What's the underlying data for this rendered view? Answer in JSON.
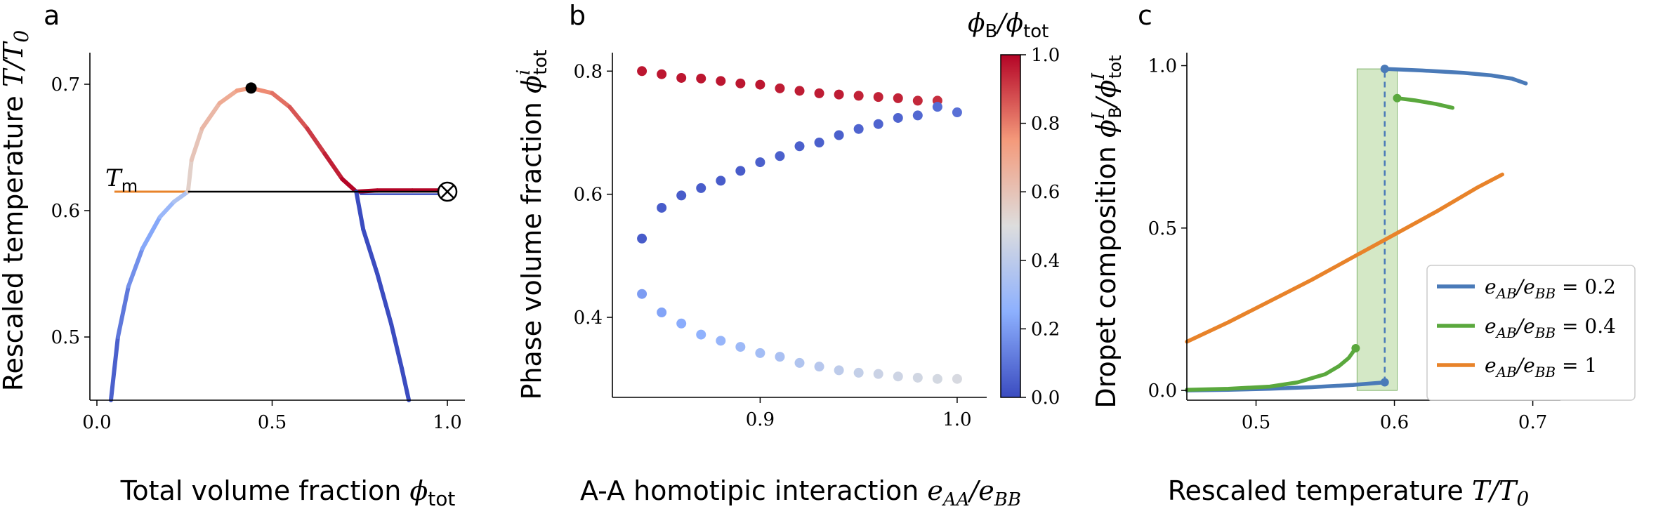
{
  "figure": {
    "panel_labels": [
      "a",
      "b",
      "c"
    ]
  },
  "colors": {
    "blue": "#3b4cc0",
    "red": "#b40426",
    "orange": "#e8832a",
    "c_blue": "#4a7ab8",
    "c_green": "#5aa83d",
    "c_orange": "#e8832a",
    "shade": "#a9d18e"
  },
  "chart_data": [
    {
      "type": "line",
      "panel": "a",
      "xlabel": "Total volume fraction",
      "xlabel_math": "ϕ",
      "xlabel_sub": "tot",
      "ylabel": "Rescaled temperature",
      "ylabel_math": "T/T",
      "ylabel_sub": "0",
      "xlim": [
        -0.02,
        1.05
      ],
      "ylim": [
        0.45,
        0.725
      ],
      "xticks": [
        0.0,
        0.5,
        1.0
      ],
      "xtick_labels": [
        "0.0",
        "0.5",
        "1.0"
      ],
      "yticks": [
        0.5,
        0.6,
        0.7
      ],
      "ytick_labels": [
        "0.5",
        "0.6",
        "0.7"
      ],
      "annotation_label": "T",
      "annotation_sub": "m",
      "critical_point": [
        0.44,
        0.697
      ],
      "triple_line": {
        "x": [
          0.26,
          1.0
        ],
        "y": 0.615
      },
      "tm_line": {
        "x": [
          0.05,
          0.26
        ],
        "y": 0.615
      },
      "endpoint_marker": [
        1.0,
        0.615
      ],
      "series": [
        {
          "label": "left_binodal",
          "x": [
            0.04,
            0.06,
            0.09,
            0.13,
            0.18,
            0.22,
            0.26
          ],
          "y": [
            0.45,
            0.5,
            0.54,
            0.57,
            0.595,
            0.607,
            0.615
          ]
        },
        {
          "label": "upper_dome",
          "x": [
            0.26,
            0.27,
            0.3,
            0.35,
            0.4,
            0.44,
            0.5,
            0.55,
            0.6,
            0.65,
            0.7,
            0.74
          ],
          "y": [
            0.615,
            0.64,
            0.665,
            0.685,
            0.695,
            0.697,
            0.693,
            0.682,
            0.665,
            0.645,
            0.625,
            0.615
          ]
        },
        {
          "label": "right_plateau",
          "x": [
            0.74,
            0.8,
            0.9,
            1.0
          ],
          "y": [
            0.615,
            0.616,
            0.616,
            0.616
          ]
        },
        {
          "label": "right_binodal",
          "x": [
            0.74,
            0.76,
            0.8,
            0.84,
            0.87,
            0.89
          ],
          "y": [
            0.615,
            0.585,
            0.55,
            0.51,
            0.475,
            0.45
          ]
        }
      ]
    },
    {
      "type": "scatter",
      "panel": "b",
      "xlabel": "A-A homotipic interaction",
      "xlabel_math": "e",
      "xlabel_sub1": "AA",
      "xlabel_mid": "/e",
      "xlabel_sub2": "BB",
      "ylabel": "Phase volume fraction",
      "ylabel_math": "ϕ",
      "ylabel_sup": "i",
      "ylabel_sub": "tot",
      "xlim": [
        0.825,
        1.015
      ],
      "ylim": [
        0.27,
        0.83
      ],
      "xticks": [
        0.9,
        1.0
      ],
      "xtick_labels": [
        "0.9",
        "1.0"
      ],
      "yticks": [
        0.4,
        0.6,
        0.8
      ],
      "ytick_labels": [
        "0.4",
        "0.6",
        "0.8"
      ],
      "colorbar_label_math": "ϕ",
      "colorbar_label_sub1": "B",
      "colorbar_label_mid": "/ϕ",
      "colorbar_label_sub2": "tot",
      "colorbar_ticks": [
        0.0,
        0.2,
        0.4,
        0.6,
        0.8,
        1.0
      ],
      "colorbar_tick_labels": [
        "0.0",
        "0.2",
        "0.4",
        "0.6",
        "0.8",
        "1.0"
      ],
      "series": [
        {
          "name": "red_phase",
          "x": [
            0.84,
            0.85,
            0.86,
            0.87,
            0.88,
            0.89,
            0.9,
            0.91,
            0.92,
            0.93,
            0.94,
            0.95,
            0.96,
            0.97,
            0.98,
            0.99
          ],
          "y": [
            0.8,
            0.795,
            0.789,
            0.788,
            0.784,
            0.78,
            0.778,
            0.772,
            0.768,
            0.764,
            0.762,
            0.76,
            0.758,
            0.756,
            0.752,
            0.752
          ],
          "c": [
            0.97,
            0.97,
            0.97,
            0.97,
            0.97,
            0.97,
            0.97,
            0.96,
            0.96,
            0.96,
            0.96,
            0.95,
            0.95,
            0.95,
            0.94,
            0.93
          ]
        },
        {
          "name": "blue_phase",
          "x": [
            0.84,
            0.85,
            0.86,
            0.87,
            0.88,
            0.89,
            0.9,
            0.91,
            0.92,
            0.93,
            0.94,
            0.95,
            0.96,
            0.97,
            0.98,
            0.99,
            1.0
          ],
          "y": [
            0.528,
            0.578,
            0.598,
            0.61,
            0.622,
            0.638,
            0.652,
            0.662,
            0.678,
            0.684,
            0.696,
            0.706,
            0.714,
            0.724,
            0.728,
            0.742,
            0.733
          ],
          "c": [
            0.04,
            0.04,
            0.04,
            0.04,
            0.04,
            0.04,
            0.05,
            0.05,
            0.05,
            0.05,
            0.05,
            0.06,
            0.06,
            0.06,
            0.07,
            0.08,
            0.09
          ]
        },
        {
          "name": "light_phase",
          "x": [
            0.84,
            0.85,
            0.86,
            0.87,
            0.88,
            0.89,
            0.9,
            0.91,
            0.92,
            0.93,
            0.94,
            0.95,
            0.96,
            0.97,
            0.98,
            0.99,
            1.0
          ],
          "y": [
            0.438,
            0.408,
            0.39,
            0.372,
            0.362,
            0.352,
            0.342,
            0.336,
            0.326,
            0.32,
            0.314,
            0.31,
            0.308,
            0.304,
            0.302,
            0.3,
            0.3
          ],
          "c": [
            0.2,
            0.22,
            0.24,
            0.26,
            0.28,
            0.3,
            0.32,
            0.34,
            0.36,
            0.38,
            0.4,
            0.42,
            0.44,
            0.45,
            0.46,
            0.47,
            0.48
          ]
        }
      ]
    },
    {
      "type": "line",
      "panel": "c",
      "xlabel": "Rescaled temperature",
      "xlabel_math": "T/T",
      "xlabel_sub": "0",
      "ylabel": "Dropet composition",
      "ylabel_math": "ϕ",
      "ylabel_sup1": "I",
      "ylabel_sub1": "B",
      "ylabel_mid": "/ϕ",
      "ylabel_sup2": "I",
      "ylabel_sub2": "tot",
      "xlim": [
        0.45,
        0.72
      ],
      "ylim": [
        -0.03,
        1.04
      ],
      "xticks": [
        0.5,
        0.6,
        0.7
      ],
      "xtick_labels": [
        "0.5",
        "0.6",
        "0.7"
      ],
      "yticks": [
        0.0,
        0.5,
        1.0
      ],
      "ytick_labels": [
        "0.0",
        "0.5",
        "1.0"
      ],
      "shade_x": [
        0.573,
        0.602
      ],
      "shade_y": [
        0.0,
        0.99
      ],
      "dashed_x": 0.593,
      "dashed_y": [
        0.025,
        0.99
      ],
      "legend_position": "lower right",
      "series": [
        {
          "name": "e_AB/e_BB = 0.2",
          "legend_main": "e",
          "legend_sub1": "AB",
          "legend_mid": "/e",
          "legend_sub2": "BB",
          "legend_val": " = 0.2",
          "color": "#4a7ab8",
          "segments": [
            {
              "x": [
                0.45,
                0.48,
                0.51,
                0.54,
                0.57,
                0.593
              ],
              "y": [
                0.0,
                0.002,
                0.005,
                0.01,
                0.017,
                0.025
              ]
            },
            {
              "x": [
                0.593,
                0.62,
                0.65,
                0.67,
                0.685,
                0.695
              ],
              "y": [
                0.99,
                0.985,
                0.978,
                0.97,
                0.96,
                0.945
              ]
            }
          ],
          "end_points": [
            [
              0.593,
              0.025
            ],
            [
              0.593,
              0.99
            ]
          ]
        },
        {
          "name": "e_AB/e_BB = 0.4",
          "legend_main": "e",
          "legend_sub1": "AB",
          "legend_mid": "/e",
          "legend_sub2": "BB",
          "legend_val": " = 0.4",
          "color": "#5aa83d",
          "segments": [
            {
              "x": [
                0.45,
                0.48,
                0.51,
                0.53,
                0.55,
                0.56,
                0.567,
                0.572
              ],
              "y": [
                0.002,
                0.005,
                0.012,
                0.025,
                0.05,
                0.075,
                0.1,
                0.13
              ]
            },
            {
              "x": [
                0.602,
                0.615,
                0.63,
                0.642
              ],
              "y": [
                0.9,
                0.893,
                0.882,
                0.87
              ]
            }
          ],
          "end_points": [
            [
              0.572,
              0.13
            ],
            [
              0.602,
              0.9
            ]
          ]
        },
        {
          "name": "e_AB/e_BB = 1",
          "legend_main": "e",
          "legend_sub1": "AB",
          "legend_mid": "/e",
          "legend_sub2": "BB",
          "legend_val": " = 1",
          "color": "#e8832a",
          "segments": [
            {
              "x": [
                0.45,
                0.48,
                0.51,
                0.54,
                0.57,
                0.6,
                0.63,
                0.66,
                0.678
              ],
              "y": [
                0.15,
                0.21,
                0.275,
                0.34,
                0.41,
                0.48,
                0.55,
                0.625,
                0.665
              ]
            }
          ],
          "end_points": []
        }
      ]
    }
  ]
}
